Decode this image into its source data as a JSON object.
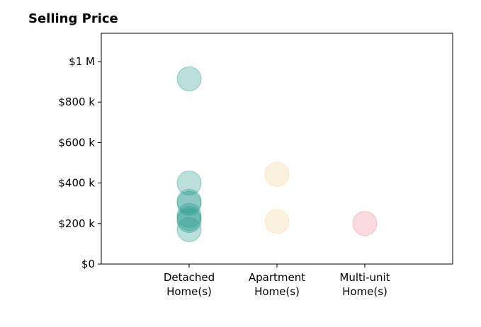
{
  "chart_data": {
    "type": "scatter",
    "title": "Selling Price",
    "xlabel": "",
    "ylabel": "",
    "categories": [
      [
        "Detached",
        "Home(s)"
      ],
      [
        "Apartment",
        "Home(s)"
      ],
      [
        "Multi-unit",
        "Home(s)"
      ]
    ],
    "xlim": [
      -1,
      3
    ],
    "ylim": [
      0,
      1140000
    ],
    "yticks": [
      0,
      200000,
      400000,
      600000,
      800000,
      1000000
    ],
    "ytick_labels": [
      "$0",
      "$200 k",
      "$400 k",
      "$600 k",
      "$800 k",
      "$1 M"
    ],
    "grid": false,
    "series": [
      {
        "category": 0,
        "color": "#2a9d8f",
        "values": [
          915000,
          400000,
          310000,
          300000,
          240000,
          225000,
          215000,
          170000
        ]
      },
      {
        "category": 1,
        "color": "#f2d49b",
        "values": [
          443000,
          210000
        ]
      },
      {
        "category": 2,
        "color": "#ef8c98",
        "values": [
          200000
        ]
      }
    ]
  }
}
